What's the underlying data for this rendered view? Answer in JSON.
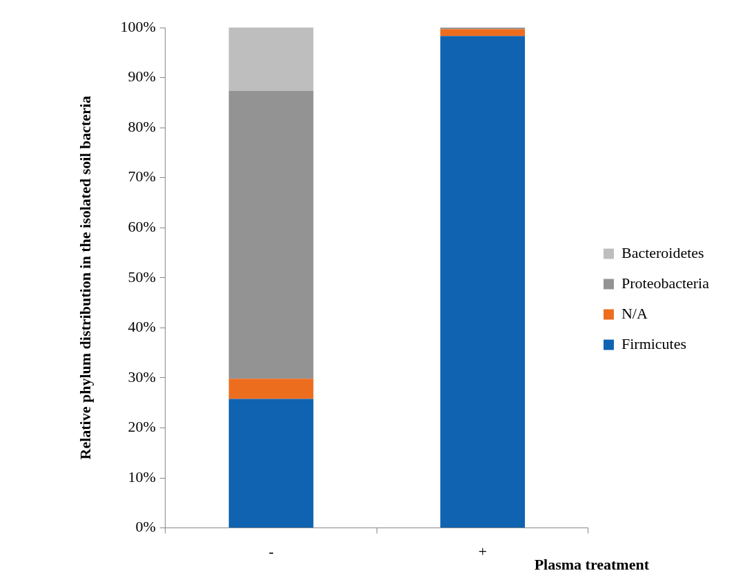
{
  "chart_data": {
    "type": "bar",
    "stacked": true,
    "xlabel": "Plasma treatment",
    "ylabel": "Relative phylum distribution in the isolated soil bacteria",
    "categories": [
      "-",
      "+"
    ],
    "series": [
      {
        "name": "Firmicutes",
        "color": "#0f63b0",
        "values": [
          25.8,
          98.3
        ]
      },
      {
        "name": "N/A",
        "color": "#ed6d1f",
        "values": [
          4.0,
          1.4
        ]
      },
      {
        "name": "Proteobacteria",
        "color": "#939393",
        "values": [
          57.6,
          0.3
        ]
      },
      {
        "name": "Bacteroidetes",
        "color": "#bebebe",
        "values": [
          12.6,
          0
        ]
      }
    ],
    "ylim": [
      0,
      100
    ],
    "yticks": [
      {
        "value": 0,
        "label": "0%"
      },
      {
        "value": 10,
        "label": "10%"
      },
      {
        "value": 20,
        "label": "20%"
      },
      {
        "value": 30,
        "label": "30%"
      },
      {
        "value": 40,
        "label": "40%"
      },
      {
        "value": 50,
        "label": "50%"
      },
      {
        "value": 60,
        "label": "60%"
      },
      {
        "value": 70,
        "label": "70%"
      },
      {
        "value": 80,
        "label": "80%"
      },
      {
        "value": 90,
        "label": "90%"
      },
      {
        "value": 100,
        "label": "100%"
      }
    ],
    "grid": false,
    "legend": "right"
  }
}
